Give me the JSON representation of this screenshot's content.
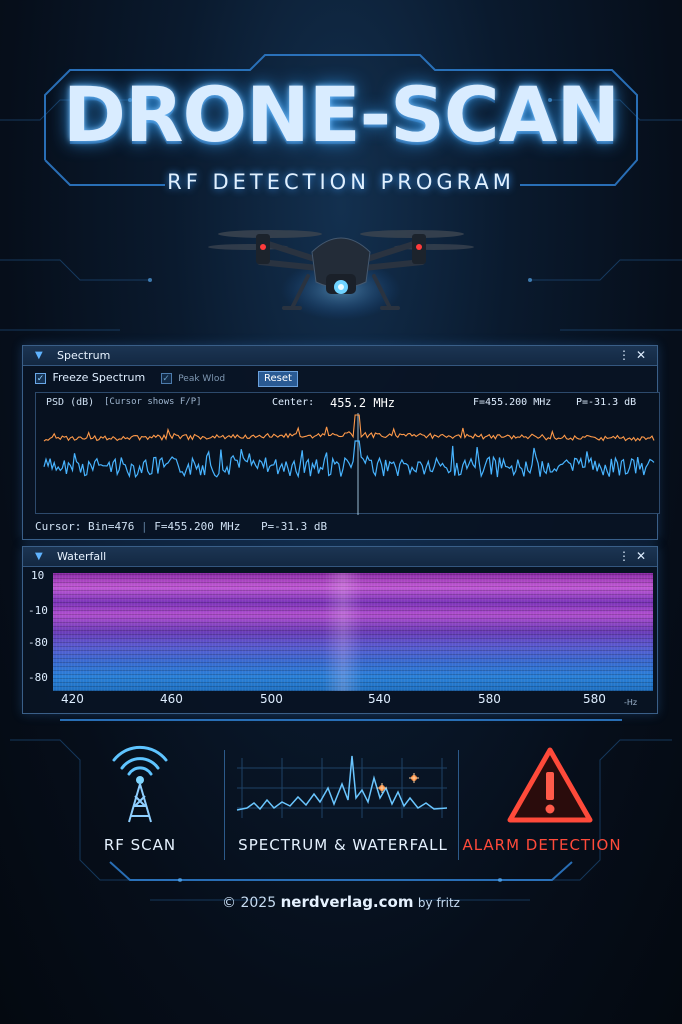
{
  "header": {
    "title": "DRONE-SCAN",
    "subtitle": "RF DETECTION PROGRAM"
  },
  "spectrum_panel": {
    "title": "Spectrum",
    "menu_glyph": "⋮",
    "close_glyph": "✕",
    "freeze_label": "Freeze Spectrum",
    "peak_label": "Peak Wlod",
    "reset_label": "Reset",
    "plot_label": "PSD (dB)",
    "cursor_hint": "[Cursor shows F/P]",
    "center_label": "Center:",
    "center_value": "455.2 MHz",
    "readout_f": "F=455.200 MHz",
    "readout_p": "P=-31.3 dB",
    "cursor_bin": "Cursor: Bin=476",
    "cursor_f": "F=455.200 MHz",
    "cursor_p": "P=-31.3 dB"
  },
  "waterfall_panel": {
    "title": "Waterfall",
    "menu_glyph": "⋮",
    "close_glyph": "✕",
    "y_ticks": [
      "10",
      "-10",
      "-80",
      "-80"
    ],
    "x_ticks": [
      "420",
      "460",
      "500",
      "540",
      "580",
      "580"
    ],
    "x_unit": "-Hz"
  },
  "features": [
    {
      "label": "RF SCAN",
      "icon": "radio-tower-icon",
      "color": "#e6f2ff"
    },
    {
      "label": "SPECTRUM & WATERFALL",
      "icon": "spectrum-icon",
      "color": "#e6f2ff"
    },
    {
      "label": "ALARM DETECTION",
      "icon": "warning-icon",
      "color": "#ff4a3a"
    }
  ],
  "footer": {
    "copyright": "© 2025",
    "site": "nerdverlag.com",
    "by": "by fritz"
  },
  "colors": {
    "accent": "#3a9cff",
    "spectrum_line": "#48b4ff",
    "peak_line": "#ff9a4a",
    "alarm": "#ff4a3a"
  }
}
